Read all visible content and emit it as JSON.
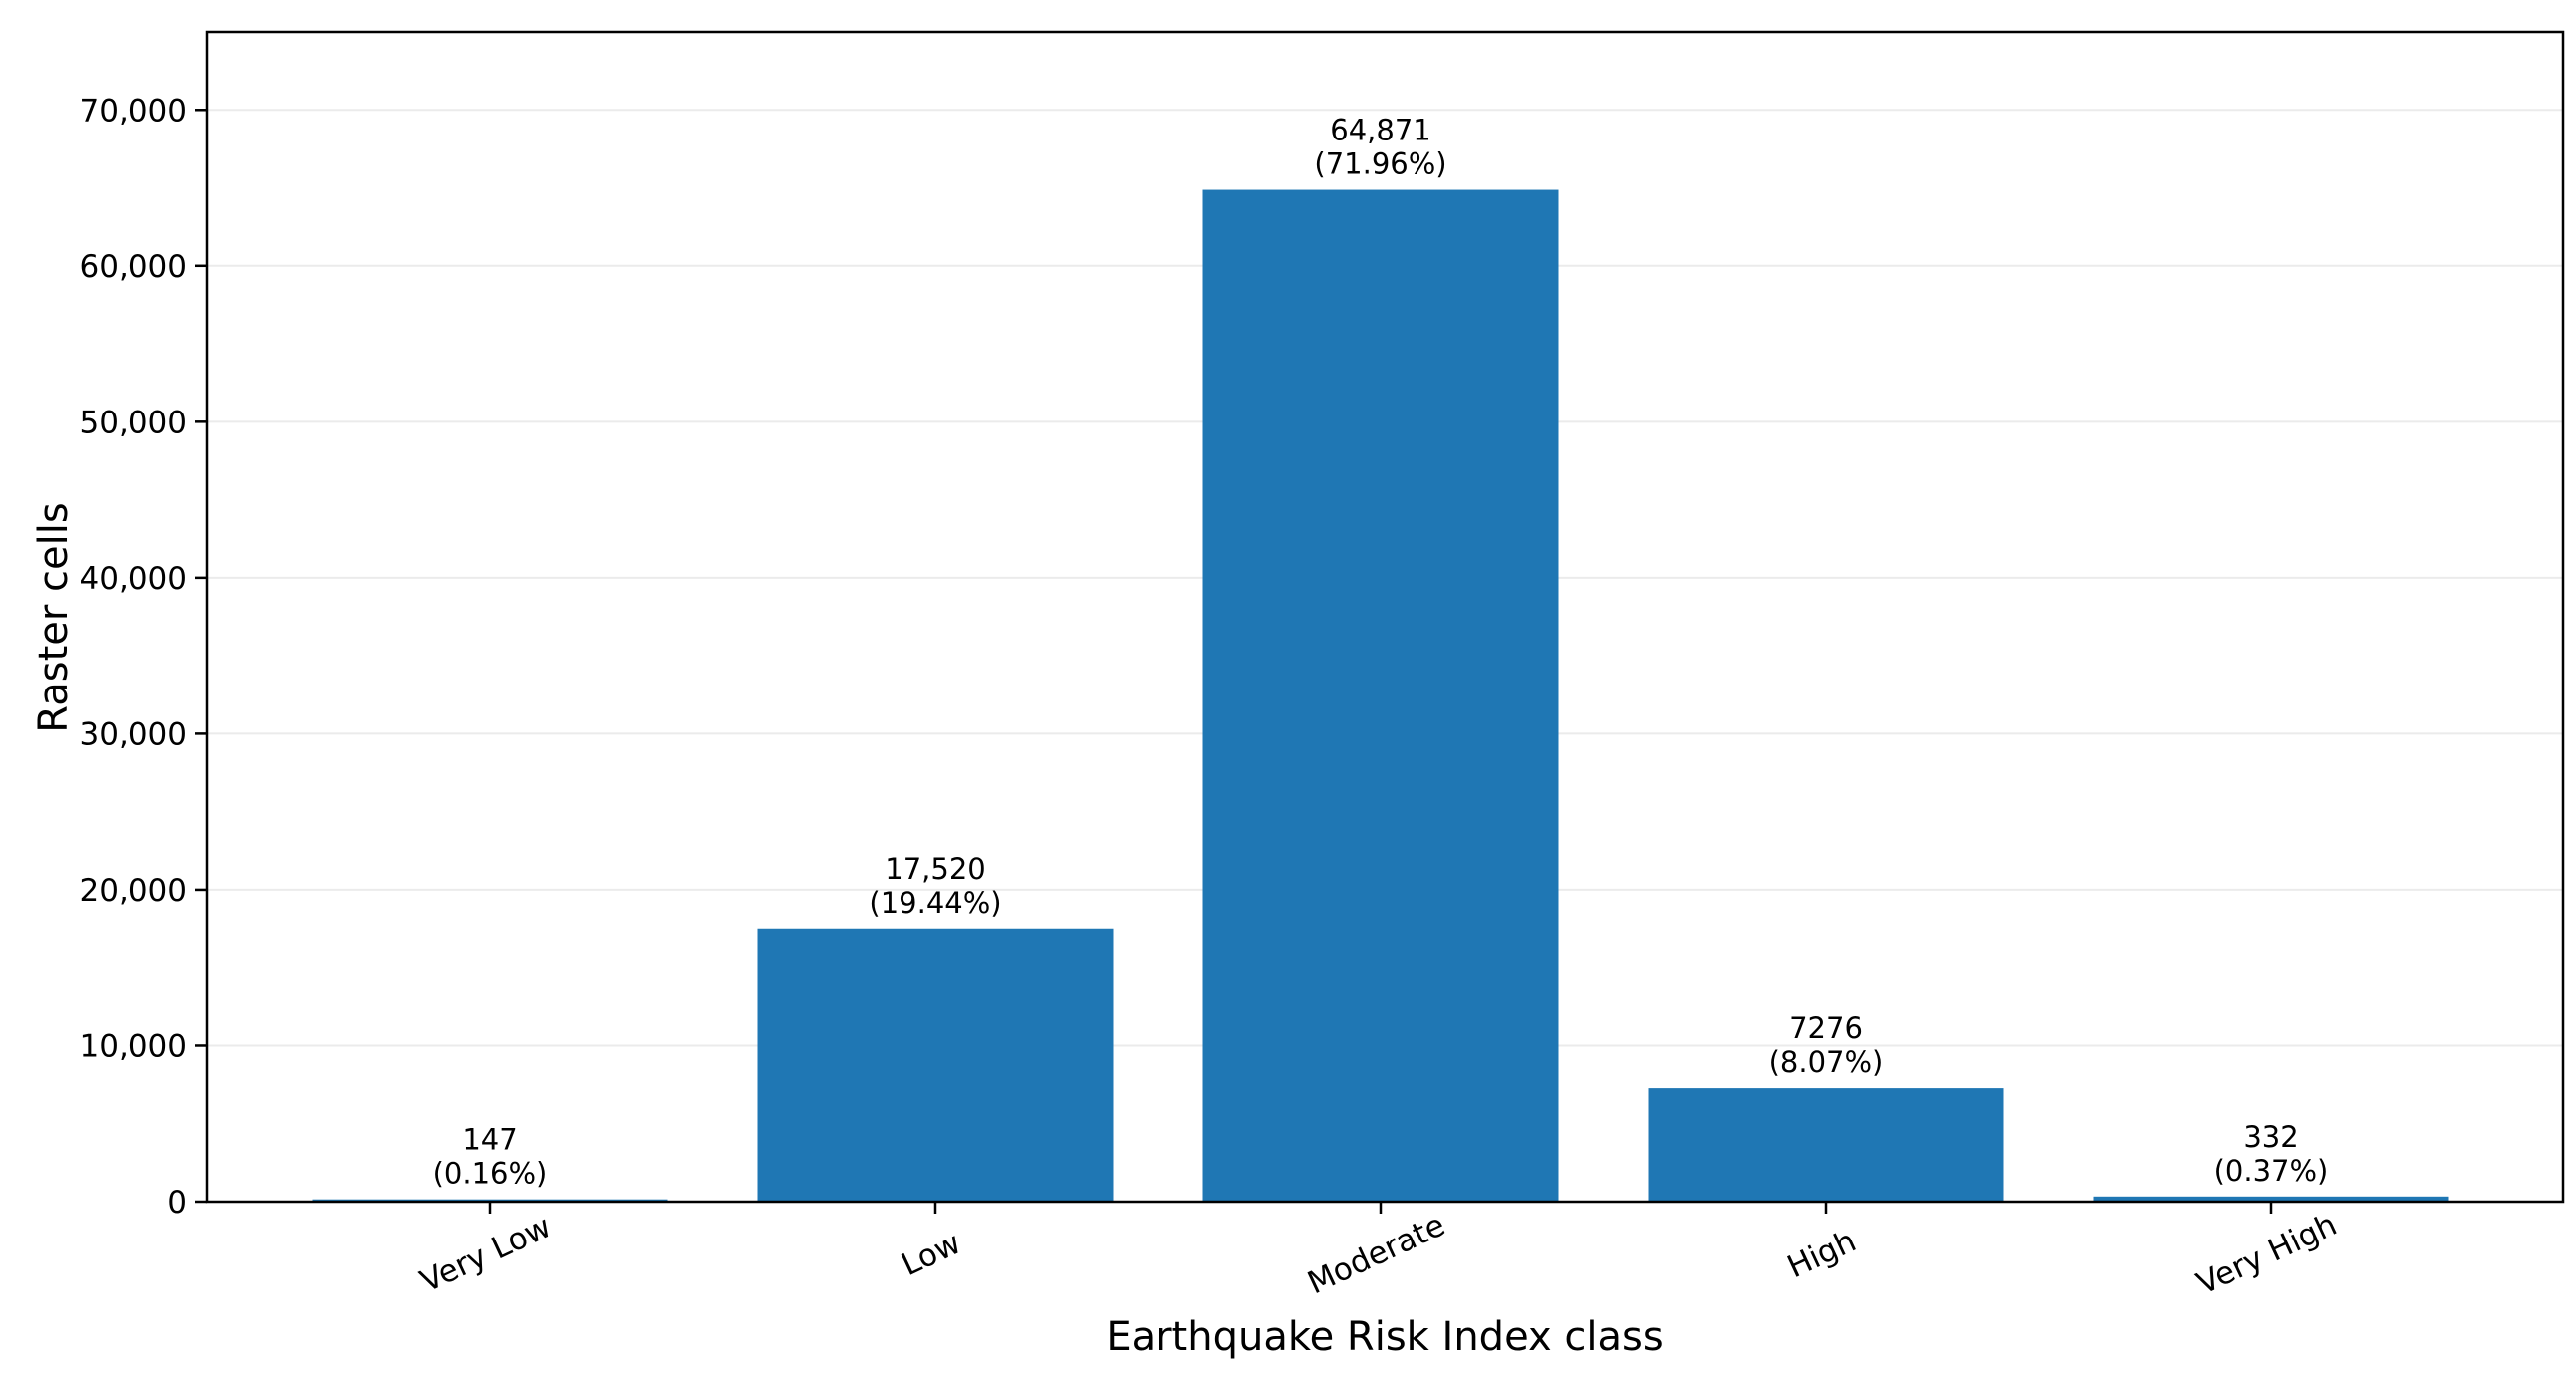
{
  "chart_data": {
    "type": "bar",
    "categories": [
      "Very Low",
      "Low",
      "Moderate",
      "High",
      "Very High"
    ],
    "values": [
      147,
      17520,
      64871,
      7276,
      332
    ],
    "data_labels": [
      [
        "147",
        "(0.16%)"
      ],
      [
        "17,520",
        "(19.44%)"
      ],
      [
        "64,871",
        "(71.96%)"
      ],
      [
        "7276",
        "(8.07%)"
      ],
      [
        "332",
        "(0.37%)"
      ]
    ],
    "xlabel": "Earthquake Risk Index class",
    "ylabel": "Raster cells",
    "ylim": [
      0,
      75000
    ],
    "yticks": [
      0,
      10000,
      20000,
      30000,
      40000,
      50000,
      60000,
      70000
    ],
    "ytick_labels": [
      "0",
      "10,000",
      "20,000",
      "30,000",
      "40,000",
      "50,000",
      "60,000",
      "70,000"
    ],
    "grid": "horizontal",
    "bar_color": "#1f77b4",
    "x_tick_rotation": "rotated about 25 degrees counter-clockwise"
  }
}
